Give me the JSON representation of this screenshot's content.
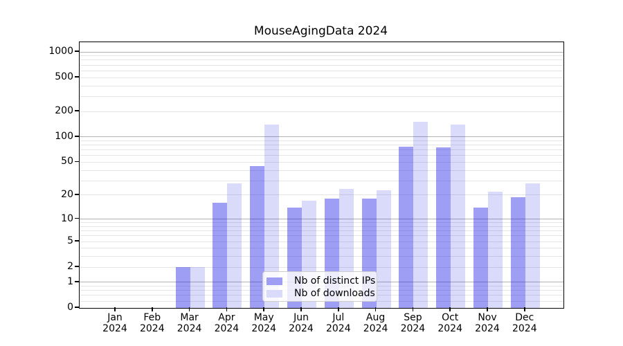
{
  "title": "MouseAgingData 2024",
  "chart_data": {
    "type": "bar",
    "title": "MouseAgingData 2024",
    "categories": [
      "Jan 2024",
      "Feb 2024",
      "Mar 2024",
      "Apr 2024",
      "May 2024",
      "Jun 2024",
      "Jul 2024",
      "Aug 2024",
      "Sep 2024",
      "Oct 2024",
      "Nov 2024",
      "Dec 2024"
    ],
    "series": [
      {
        "name": "Nb of distinct IPs",
        "color": "rgba(25,25,230,0.42)",
        "legend_color": "#9e9ef4",
        "values": [
          0,
          0,
          2,
          16,
          45,
          14,
          18,
          18,
          76,
          75,
          14,
          19
        ]
      },
      {
        "name": "Nb of downloads",
        "color": "rgba(25,25,230,0.16)",
        "legend_color": "#dadafb",
        "values": [
          0,
          0,
          2,
          28,
          140,
          17,
          24,
          23,
          150,
          140,
          22,
          28
        ]
      }
    ],
    "xlabel": "",
    "ylabel": "",
    "yscale": "log1p",
    "ylim": [
      0,
      1300
    ],
    "yticks": [
      0,
      1,
      2,
      5,
      10,
      20,
      50,
      100,
      200,
      500,
      1000
    ],
    "grid_major": [
      1,
      10,
      100,
      1000
    ],
    "grid_minor": [
      0.2,
      0.4,
      0.6,
      0.8,
      2,
      3,
      4,
      5,
      6,
      7,
      8,
      9,
      20,
      30,
      40,
      50,
      60,
      70,
      80,
      90,
      200,
      300,
      400,
      500,
      600,
      700,
      800,
      900
    ],
    "legend_position": "lower center",
    "bar_group_width_ratio": 0.8
  }
}
